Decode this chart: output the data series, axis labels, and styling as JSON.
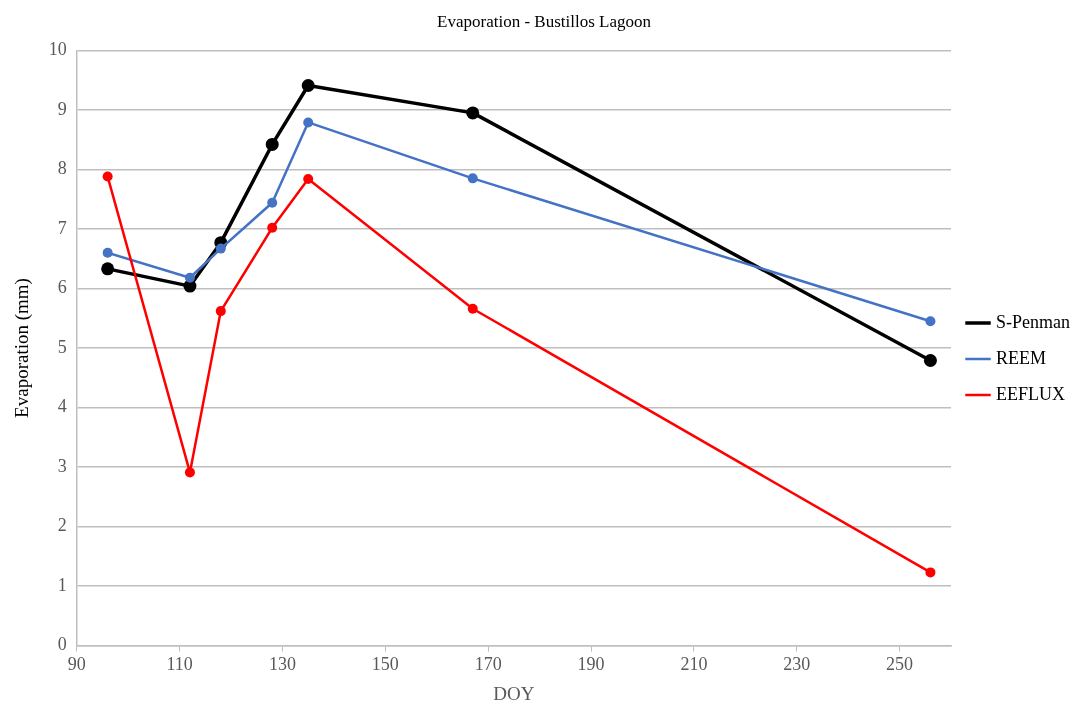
{
  "chart_data": {
    "type": "line",
    "title": "Evaporation - Bustillos Lagoon",
    "xlabel": "DOY",
    "ylabel": "Evaporation (mm)",
    "x": [
      96,
      112,
      118,
      128,
      135,
      167,
      256
    ],
    "series": [
      {
        "name": "S-Penman",
        "color": "#000000",
        "values": [
          6.33,
          6.04,
          6.77,
          8.42,
          9.41,
          8.95,
          4.79
        ]
      },
      {
        "name": "REEM",
        "color": "#4472c4",
        "values": [
          6.6,
          6.18,
          6.67,
          7.44,
          8.79,
          7.85,
          5.45
        ]
      },
      {
        "name": "EEFLUX",
        "color": "#ff0000",
        "values": [
          7.88,
          2.91,
          5.62,
          7.02,
          7.84,
          5.66,
          1.23
        ]
      }
    ],
    "xlim": [
      90,
      260
    ],
    "xticks": [
      90,
      110,
      130,
      150,
      170,
      190,
      210,
      230,
      250
    ],
    "ylim": [
      0,
      10
    ],
    "yticks": [
      0,
      1,
      2,
      3,
      4,
      5,
      6,
      7,
      8,
      9,
      10
    ],
    "grid": "y",
    "legend": "right",
    "marker": "circle",
    "line_style": "solid"
  }
}
